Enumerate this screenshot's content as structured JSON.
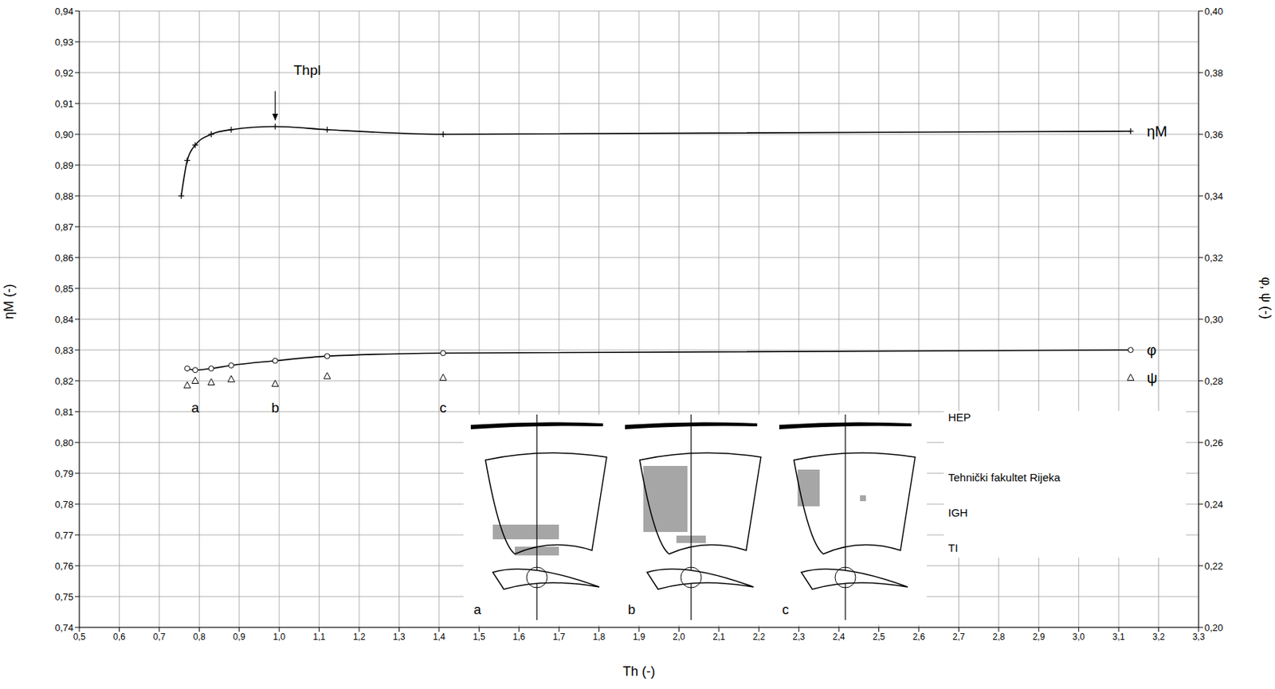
{
  "chart_data": {
    "type": "line",
    "x_label": "Th (-)",
    "y_label": "ηM (-)",
    "y2_label": "φ, ψ (-)",
    "grid": true,
    "xlim": [
      0.5,
      3.3
    ],
    "xticks": [
      {
        "value": 0.5,
        "label": "0,5"
      },
      {
        "value": 0.6,
        "label": "0,6"
      },
      {
        "value": 0.7,
        "label": "0,7"
      },
      {
        "value": 0.8,
        "label": "0,8"
      },
      {
        "value": 0.9,
        "label": "0,9"
      },
      {
        "value": 1.0,
        "label": "1,0"
      },
      {
        "value": 1.1,
        "label": "1,1"
      },
      {
        "value": 1.2,
        "label": "1,2"
      },
      {
        "value": 1.3,
        "label": "1,3"
      },
      {
        "value": 1.4,
        "label": "1,4"
      },
      {
        "value": 1.5,
        "label": "1,5"
      },
      {
        "value": 1.6,
        "label": "1,6"
      },
      {
        "value": 1.7,
        "label": "1,7"
      },
      {
        "value": 1.8,
        "label": "1,8"
      },
      {
        "value": 1.9,
        "label": "1,9"
      },
      {
        "value": 2.0,
        "label": "2,0"
      },
      {
        "value": 2.1,
        "label": "2,1"
      },
      {
        "value": 2.2,
        "label": "2,2"
      },
      {
        "value": 2.3,
        "label": "2,3"
      },
      {
        "value": 2.4,
        "label": "2,4"
      },
      {
        "value": 2.5,
        "label": "2,5"
      },
      {
        "value": 2.6,
        "label": "2,6"
      },
      {
        "value": 2.7,
        "label": "2,7"
      },
      {
        "value": 2.8,
        "label": "2,8"
      },
      {
        "value": 2.9,
        "label": "2,9"
      },
      {
        "value": 3.0,
        "label": "3,0"
      },
      {
        "value": 3.1,
        "label": "3,1"
      },
      {
        "value": 3.2,
        "label": "3,2"
      },
      {
        "value": 3.3,
        "label": "3,3"
      }
    ],
    "ylim": [
      0.74,
      0.94
    ],
    "yticks": [
      {
        "value": 0.74,
        "label": "0,74"
      },
      {
        "value": 0.75,
        "label": "0,75"
      },
      {
        "value": 0.76,
        "label": "0,76"
      },
      {
        "value": 0.77,
        "label": "0,77"
      },
      {
        "value": 0.78,
        "label": "0,78"
      },
      {
        "value": 0.79,
        "label": "0,79"
      },
      {
        "value": 0.8,
        "label": "0,80"
      },
      {
        "value": 0.81,
        "label": "0,81"
      },
      {
        "value": 0.82,
        "label": "0,82"
      },
      {
        "value": 0.83,
        "label": "0,83"
      },
      {
        "value": 0.84,
        "label": "0,84"
      },
      {
        "value": 0.85,
        "label": "0,85"
      },
      {
        "value": 0.86,
        "label": "0,86"
      },
      {
        "value": 0.87,
        "label": "0,87"
      },
      {
        "value": 0.88,
        "label": "0,88"
      },
      {
        "value": 0.89,
        "label": "0,89"
      },
      {
        "value": 0.9,
        "label": "0,90"
      },
      {
        "value": 0.91,
        "label": "0,91"
      },
      {
        "value": 0.92,
        "label": "0,92"
      },
      {
        "value": 0.93,
        "label": "0,93"
      },
      {
        "value": 0.94,
        "label": "0,94"
      }
    ],
    "y2lim": [
      0.2,
      0.4
    ],
    "y2ticks": [
      {
        "value": 0.2,
        "label": "0,20"
      },
      {
        "value": 0.22,
        "label": "0,22"
      },
      {
        "value": 0.24,
        "label": "0,24"
      },
      {
        "value": 0.26,
        "label": "0,26"
      },
      {
        "value": 0.28,
        "label": "0,28"
      },
      {
        "value": 0.3,
        "label": "0,30"
      },
      {
        "value": 0.32,
        "label": "0,32"
      },
      {
        "value": 0.34,
        "label": "0,34"
      },
      {
        "value": 0.36,
        "label": "0,36"
      },
      {
        "value": 0.38,
        "label": "0,38"
      },
      {
        "value": 0.4,
        "label": "0,40"
      }
    ],
    "series": [
      {
        "name": "ηM",
        "type": "line",
        "axis": "y",
        "color": "#000000",
        "marker": "plus",
        "line_style": "solid",
        "x": [
          0.755,
          0.77,
          0.79,
          0.83,
          0.88,
          0.99,
          1.12,
          1.41,
          3.13
        ],
        "values": [
          0.88,
          0.8915,
          0.8965,
          0.9,
          0.9015,
          0.9025,
          0.9015,
          0.9,
          0.901
        ]
      },
      {
        "name": "φ",
        "type": "line",
        "axis": "y2",
        "color": "#000000",
        "marker": "circle",
        "line_style": "solid",
        "x": [
          0.77,
          0.79,
          0.83,
          0.88,
          0.99,
          1.12,
          1.41,
          3.13
        ],
        "values": [
          0.284,
          0.2835,
          0.284,
          0.285,
          0.2865,
          0.288,
          0.289,
          0.29
        ]
      },
      {
        "name": "ψ",
        "type": "scatter",
        "axis": "y2",
        "color": "#000000",
        "marker": "triangle",
        "line_style": "none",
        "x": [
          0.77,
          0.79,
          0.83,
          0.88,
          0.99,
          1.12,
          1.41,
          3.13
        ],
        "values": [
          0.2785,
          0.28,
          0.2795,
          0.2805,
          0.279,
          0.2815,
          0.281,
          0.281
        ]
      }
    ],
    "annotations": [
      {
        "text": "Thpl",
        "x": 1.07,
        "y": 0.921
      },
      {
        "text": "a",
        "x": 0.79,
        "y": 0.8115
      },
      {
        "text": "b",
        "x": 0.99,
        "y": 0.8115
      },
      {
        "text": "c",
        "x": 1.41,
        "y": 0.8115
      }
    ],
    "arrows": [
      {
        "x": 0.99,
        "y_from": 0.914,
        "y_to": 0.9045
      }
    ],
    "insets": [
      "a",
      "b",
      "c"
    ],
    "signatures": [
      "HEP",
      "Tehnički fakultet Rijeka",
      "IGH",
      "TI"
    ]
  }
}
